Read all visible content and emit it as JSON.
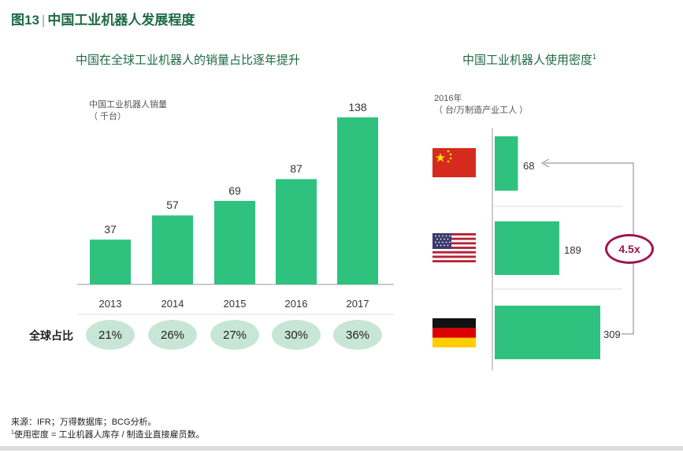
{
  "header": {
    "fig_label": "图13",
    "separator": "|",
    "title": "中国工业机器人发展程度"
  },
  "chart_data": [
    {
      "type": "bar",
      "title": "中国在全球工业机器人的销量占比逐年提升",
      "ylabel_line1": "中国工业机器人销量",
      "ylabel_line2": "（ 千台）",
      "categories": [
        "2013",
        "2014",
        "2015",
        "2016",
        "2017"
      ],
      "values": [
        37,
        57,
        69,
        87,
        138
      ],
      "value_labels": [
        "37",
        "57",
        "69",
        "87",
        "138"
      ],
      "share_label": "全球占比",
      "shares": [
        "21%",
        "26%",
        "27%",
        "30%",
        "36%"
      ],
      "color": "#2ec27e"
    },
    {
      "type": "bar",
      "orientation": "horizontal",
      "title": "中国工业机器人使用密度",
      "title_sup": "1",
      "ylabel_line1": "2016年",
      "ylabel_line2": "（ 台/万制造产业工人 ）",
      "categories": [
        "China",
        "USA",
        "Germany"
      ],
      "flag_icons": [
        "china-flag-icon",
        "usa-flag-icon",
        "germany-flag-icon"
      ],
      "values": [
        68,
        189,
        309
      ],
      "value_labels": [
        "68",
        "189",
        "309"
      ],
      "ratio_label": "4.5x",
      "color": "#2ec27e",
      "ratio_color": "#9e1550"
    }
  ],
  "footer": {
    "source": "来源：IFR；万得数据库；BCG分析。",
    "note_sup": "1",
    "note": "使用密度 = 工业机器人库存 / 制造业直接雇员数。"
  }
}
